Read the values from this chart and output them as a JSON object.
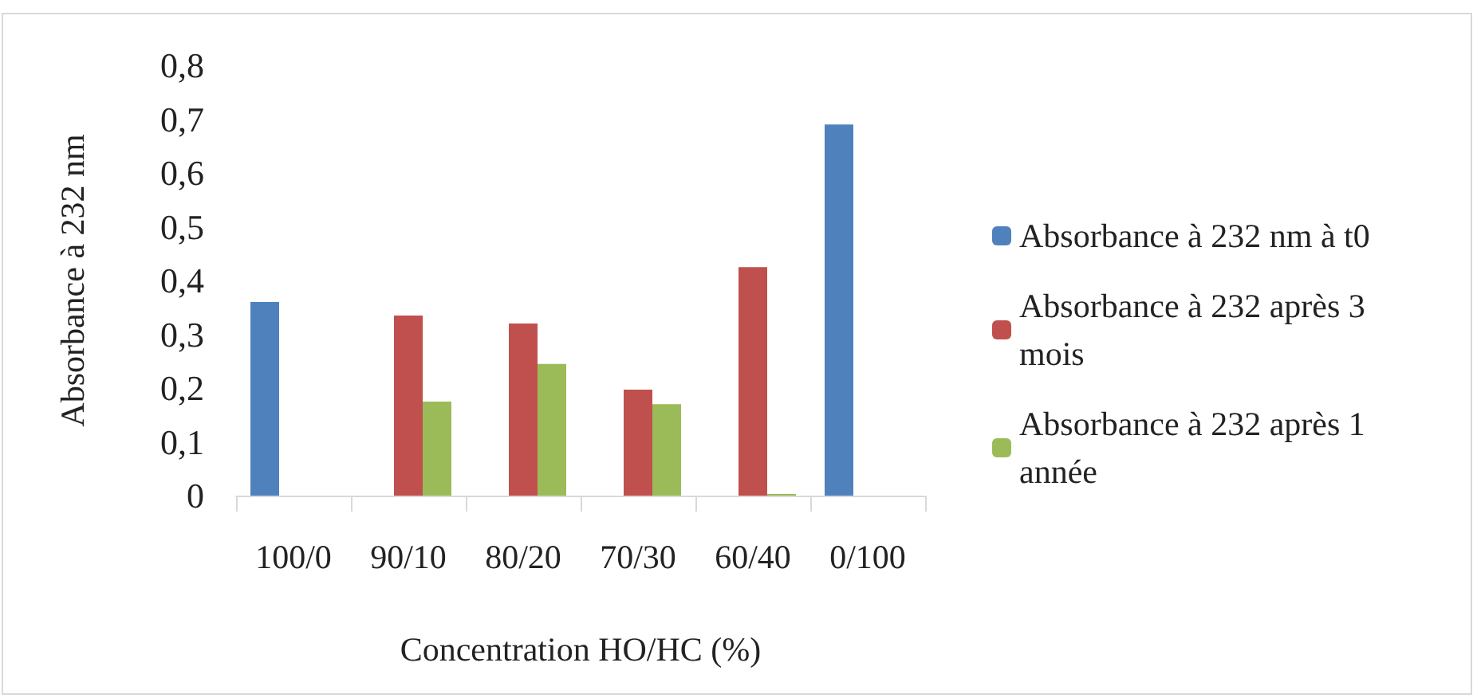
{
  "chart_data": {
    "type": "bar",
    "xlabel": "Concentration HO/HC (%)",
    "ylabel": "Absorbance à 232 nm",
    "categories": [
      "100/0",
      "90/10",
      "80/20",
      "70/30",
      "60/40",
      "0/100"
    ],
    "series": [
      {
        "name": "Absorbance à 232 nm à t0",
        "color": "#4f81bd",
        "values": [
          0.36,
          null,
          null,
          null,
          null,
          0.69
        ]
      },
      {
        "name": "Absorbance à 232 après 3 mois",
        "color": "#c0504d",
        "values": [
          null,
          0.335,
          0.32,
          0.197,
          0.425,
          null
        ]
      },
      {
        "name": "Absorbance à 232 après 1 année",
        "color": "#9bbb59",
        "values": [
          null,
          0.175,
          0.245,
          0.17,
          0.003,
          null
        ]
      }
    ],
    "ylim": [
      0,
      0.8
    ],
    "yticks": [
      {
        "value": 0,
        "label": "0"
      },
      {
        "value": 0.1,
        "label": "0,1"
      },
      {
        "value": 0.2,
        "label": "0,2"
      },
      {
        "value": 0.3,
        "label": "0,3"
      },
      {
        "value": 0.4,
        "label": "0,4"
      },
      {
        "value": 0.5,
        "label": "0,5"
      },
      {
        "value": 0.6,
        "label": "0,6"
      },
      {
        "value": 0.7,
        "label": "0,7"
      },
      {
        "value": 0.8,
        "label": "0,8"
      }
    ],
    "grid": false,
    "legend": "right"
  }
}
